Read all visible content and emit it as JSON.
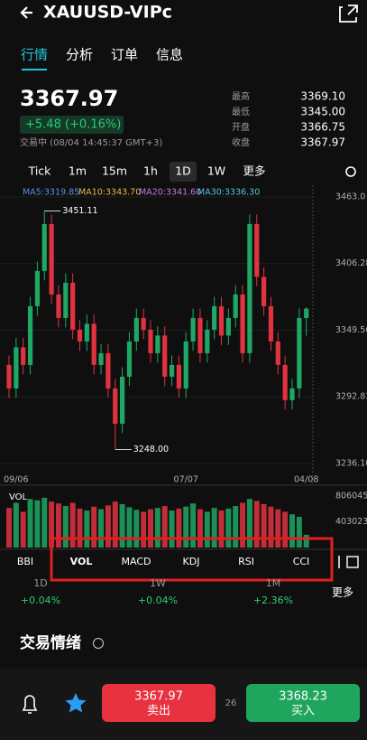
{
  "header": {
    "title": "XAUUSD-VIPc"
  },
  "tabs": [
    "行情",
    "分析",
    "订单",
    "信息"
  ],
  "quote": {
    "price": "3367.97",
    "change": "+5.48 (+0.16%)",
    "status": "交易中 (08/04 14:45:37 GMT+3)"
  },
  "stats": [
    {
      "label": "最高",
      "value": "3369.10"
    },
    {
      "label": "最低",
      "value": "3345.00"
    },
    {
      "label": "开盘",
      "value": "3366.75"
    },
    {
      "label": "收盘",
      "value": "3367.97"
    }
  ],
  "timeframes": [
    "Tick",
    "1m",
    "15m",
    "1h",
    "1D",
    "1W",
    "更多"
  ],
  "ma_labels": [
    {
      "text": "MA5:3319.85",
      "color": "#5b8de0"
    },
    {
      "text": "MA10:3343.70",
      "color": "#e6b84a"
    },
    {
      "text": "MA20:3341.60",
      "color": "#c07be0"
    },
    {
      "text": "MA30:3336.30",
      "color": "#4fc3d9"
    }
  ],
  "chart_data": {
    "type": "candlestick",
    "categories": [
      null,
      "09/06",
      null,
      null,
      null,
      null,
      null,
      null,
      null,
      null,
      null,
      null,
      null,
      null,
      null,
      null,
      null,
      null,
      null,
      null,
      null,
      null,
      null,
      null,
      null,
      "07/07",
      null,
      null,
      null,
      null,
      null,
      null,
      null,
      null,
      null,
      null,
      null,
      null,
      null,
      null,
      null,
      null,
      "04/08"
    ],
    "open": [
      3320,
      3300,
      3335,
      3320,
      3370,
      3400,
      3440,
      3380,
      3360,
      3390,
      3350,
      3340,
      3355,
      3320,
      3330,
      3300,
      3270,
      3310,
      3340,
      3360,
      3350,
      3330,
      3345,
      3310,
      3320,
      3300,
      3340,
      3360,
      3330,
      3350,
      3370,
      3345,
      3360,
      3380,
      3330,
      3440,
      3395,
      3370,
      3340,
      3320,
      3290,
      3300,
      3360
    ],
    "high": [
      3328,
      3343,
      3343,
      3378,
      3408,
      3451.11,
      3448,
      3388,
      3398,
      3398,
      3358,
      3363,
      3363,
      3338,
      3338,
      3308,
      3318,
      3348,
      3368,
      3368,
      3358,
      3353,
      3353,
      3328,
      3328,
      3348,
      3368,
      3368,
      3358,
      3378,
      3378,
      3368,
      3388,
      3388,
      3448,
      3448,
      3403,
      3378,
      3348,
      3328,
      3308,
      3368,
      3369.1
    ],
    "low": [
      3292,
      3292,
      3312,
      3312,
      3362,
      3392,
      3372,
      3352,
      3352,
      3342,
      3332,
      3332,
      3312,
      3312,
      3292,
      3248,
      3262,
      3302,
      3332,
      3342,
      3322,
      3322,
      3302,
      3302,
      3292,
      3292,
      3332,
      3322,
      3322,
      3342,
      3337,
      3337,
      3352,
      3322,
      3322,
      3387,
      3362,
      3332,
      3312,
      3282,
      3282,
      3292,
      3345
    ],
    "close": [
      3300,
      3335,
      3320,
      3370,
      3400,
      3440,
      3380,
      3360,
      3390,
      3350,
      3340,
      3355,
      3320,
      3330,
      3300,
      3270,
      3310,
      3340,
      3360,
      3350,
      3330,
      3345,
      3310,
      3320,
      3300,
      3340,
      3360,
      3330,
      3350,
      3370,
      3345,
      3360,
      3380,
      3330,
      3440,
      3395,
      3370,
      3340,
      3320,
      3290,
      3300,
      3360,
      3367.97
    ],
    "up_color": "#1fa864",
    "down_color": "#e0323f",
    "ylim": [
      3236.1,
      3463
    ],
    "yticks": [
      {
        "value": 3463,
        "label": "3463.0"
      },
      3406.28,
      3349.56,
      3292.83,
      {
        "value": 3236.1,
        "label": "3236.10"
      }
    ],
    "annotations": [
      "3451.11",
      "3248.00"
    ]
  },
  "volume": {
    "label": "VOL",
    "values": [
      620000,
      700000,
      560000,
      760000,
      740000,
      780000,
      720000,
      690000,
      650000,
      700000,
      610000,
      580000,
      640000,
      600000,
      660000,
      720000,
      680000,
      630000,
      590000,
      560000,
      600000,
      620000,
      650000,
      580000,
      610000,
      640000,
      690000,
      600000,
      560000,
      620000,
      580000,
      610000,
      650000,
      700000,
      760000,
      730000,
      680000,
      640000,
      600000,
      560000,
      520000,
      480000,
      200000
    ],
    "ylim": [
      0,
      806045
    ],
    "yticks": [
      806045,
      403023
    ]
  },
  "indicators": [
    "BBI",
    "VOL",
    "MACD",
    "KDJ",
    "RSI",
    "CCI"
  ],
  "periods": [
    {
      "label": "1D",
      "change": "+0.04%"
    },
    {
      "label": "1W",
      "change": "+0.04%"
    },
    {
      "label": "1M",
      "change": "+2.36%"
    }
  ],
  "more": "更多",
  "sentiment_title": "交易情绪",
  "footer": {
    "sell_price": "3367.97",
    "sell_label": "卖出",
    "spread": "26",
    "buy_price": "3368.23",
    "buy_label": "买入"
  }
}
